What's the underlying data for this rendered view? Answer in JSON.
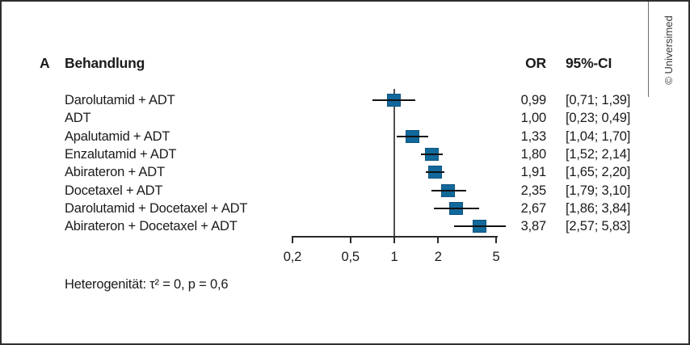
{
  "figure": {
    "panel_label": "A",
    "treatment_header": "Behandlung",
    "or_header": "OR",
    "ci_header": "95%-CI",
    "footnote": "Heterogenität: τ² = 0, p = 0,6",
    "credit": "© Universimed"
  },
  "chart_data": {
    "type": "forest",
    "x_scale": "log",
    "x_ticks": [
      "0,2",
      "0,5",
      "1",
      "2",
      "5"
    ],
    "x_tick_values": [
      0.2,
      0.5,
      1,
      2,
      5
    ],
    "reference_line": 1,
    "marker_color": "#11689b",
    "columns": [
      "Behandlung",
      "OR",
      "95%-CI"
    ],
    "rows": [
      {
        "label": "Darolutamid + ADT",
        "or": 0.99,
        "ci_low": 0.71,
        "ci_high": 1.39,
        "or_text": "0,99",
        "ci_text": "[0,71; 1,39]",
        "marker": true
      },
      {
        "label": "ADT",
        "or": 1.0,
        "ci_low": 0.23,
        "ci_high": 0.49,
        "or_text": "1,00",
        "ci_text": "[0,23; 0,49]",
        "marker": false
      },
      {
        "label": "Apalutamid + ADT",
        "or": 1.33,
        "ci_low": 1.04,
        "ci_high": 1.7,
        "or_text": "1,33",
        "ci_text": "[1,04; 1,70]",
        "marker": true
      },
      {
        "label": "Enzalutamid + ADT",
        "or": 1.8,
        "ci_low": 1.52,
        "ci_high": 2.14,
        "or_text": "1,80",
        "ci_text": "[1,52; 2,14]",
        "marker": true
      },
      {
        "label": "Abirateron + ADT",
        "or": 1.91,
        "ci_low": 1.65,
        "ci_high": 2.2,
        "or_text": "1,91",
        "ci_text": "[1,65; 2,20]",
        "marker": true
      },
      {
        "label": "Docetaxel + ADT",
        "or": 2.35,
        "ci_low": 1.79,
        "ci_high": 3.1,
        "or_text": "2,35",
        "ci_text": "[1,79; 3,10]",
        "marker": true
      },
      {
        "label": "Darolutamid + Docetaxel + ADT",
        "or": 2.67,
        "ci_low": 1.86,
        "ci_high": 3.84,
        "or_text": "2,67",
        "ci_text": "[1,86; 3,84]",
        "marker": true
      },
      {
        "label": "Abirateron + Docetaxel + ADT",
        "or": 3.87,
        "ci_low": 2.57,
        "ci_high": 5.83,
        "or_text": "3,87",
        "ci_text": "[2,57; 5,83]",
        "marker": true
      }
    ]
  }
}
